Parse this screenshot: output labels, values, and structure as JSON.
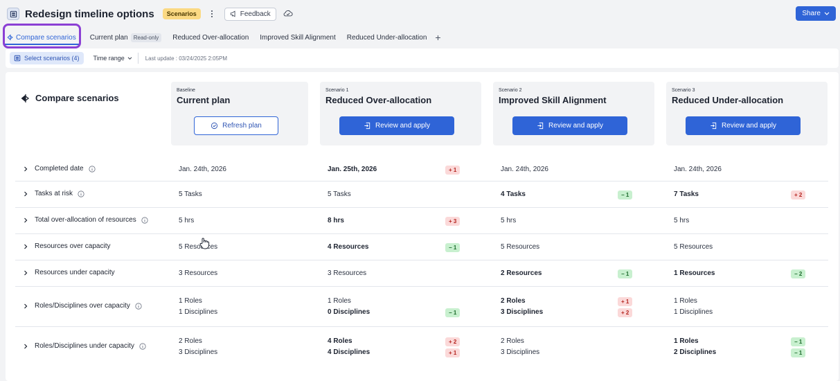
{
  "header": {
    "title": "Redesign timeline options",
    "badge": "Scenarios",
    "feedback_label": "Feedback",
    "share_label": "Share"
  },
  "tabs": [
    {
      "label": "Compare scenarios",
      "active": true
    },
    {
      "label": "Current plan",
      "tag": "Read-only"
    },
    {
      "label": "Reduced Over-allocation"
    },
    {
      "label": "Improved Skill Alignment"
    },
    {
      "label": "Reduced Under-allocation"
    }
  ],
  "toolbar": {
    "select_label": "Select scenarios (4)",
    "time_range_label": "Time range",
    "last_update": "Last update : 03/24/2025 2:05PM"
  },
  "compare": {
    "heading": "Compare scenarios",
    "columns": [
      {
        "kicker": "Baseline",
        "name": "Current plan",
        "action": "Refresh plan"
      },
      {
        "kicker": "Scenario 1",
        "name": "Reduced Over-allocation",
        "action": "Review and apply"
      },
      {
        "kicker": "Scenario 2",
        "name": "Improved Skill Alignment",
        "action": "Review and apply"
      },
      {
        "kicker": "Scenario 3",
        "name": "Reduced Under-allocation",
        "action": "Review and apply"
      }
    ]
  },
  "rows": [
    {
      "label": "Completed date",
      "info": true,
      "cells": [
        {
          "lines": [
            "Jan. 24th, 2026"
          ]
        },
        {
          "lines": [
            "Jan. 25th, 2026"
          ],
          "bold": true,
          "deltas": [
            {
              "text": "+ 1",
              "dir": "up"
            }
          ]
        },
        {
          "lines": [
            "Jan. 24th, 2026"
          ]
        },
        {
          "lines": [
            "Jan. 24th, 2026"
          ]
        }
      ]
    },
    {
      "label": "Tasks at risk",
      "info": true,
      "cells": [
        {
          "lines": [
            "5 Tasks"
          ]
        },
        {
          "lines": [
            "5 Tasks"
          ]
        },
        {
          "lines": [
            "4 Tasks"
          ],
          "bold": true,
          "deltas": [
            {
              "text": "− 1",
              "dir": "down"
            }
          ]
        },
        {
          "lines": [
            "7 Tasks"
          ],
          "bold": true,
          "deltas": [
            {
              "text": "+ 2",
              "dir": "up"
            }
          ]
        }
      ]
    },
    {
      "label": "Total over-allocation of resources",
      "info": true,
      "cells": [
        {
          "lines": [
            "5 hrs"
          ]
        },
        {
          "lines": [
            "8 hrs"
          ],
          "bold": true,
          "deltas": [
            {
              "text": "+ 3",
              "dir": "up"
            }
          ]
        },
        {
          "lines": [
            "5 hrs"
          ]
        },
        {
          "lines": [
            "5 hrs"
          ]
        }
      ]
    },
    {
      "label": "Resources over capacity",
      "info": false,
      "cells": [
        {
          "lines": [
            "5 Resources"
          ]
        },
        {
          "lines": [
            "4 Resources"
          ],
          "bold": true,
          "deltas": [
            {
              "text": "− 1",
              "dir": "down"
            }
          ]
        },
        {
          "lines": [
            "5 Resources"
          ]
        },
        {
          "lines": [
            "5 Resources"
          ]
        }
      ]
    },
    {
      "label": "Resources under capacity",
      "info": false,
      "cells": [
        {
          "lines": [
            "3 Resources"
          ]
        },
        {
          "lines": [
            "3 Resources"
          ]
        },
        {
          "lines": [
            "2 Resources"
          ],
          "bold": true,
          "deltas": [
            {
              "text": "− 1",
              "dir": "down"
            }
          ]
        },
        {
          "lines": [
            "1 Resources"
          ],
          "bold": true,
          "deltas": [
            {
              "text": "− 2",
              "dir": "down"
            }
          ]
        }
      ]
    },
    {
      "label": "Roles/Disciplines over capacity",
      "info": true,
      "cells": [
        {
          "lines": [
            "1 Roles",
            "1 Disciplines"
          ]
        },
        {
          "lines": [
            "1 Roles",
            "0 Disciplines"
          ],
          "boldLines": [
            false,
            true
          ],
          "deltas": [
            null,
            {
              "text": "− 1",
              "dir": "down"
            }
          ]
        },
        {
          "lines": [
            "2 Roles",
            "3 Disciplines"
          ],
          "bold": true,
          "deltas": [
            {
              "text": "+ 1",
              "dir": "up"
            },
            {
              "text": "+ 2",
              "dir": "up"
            }
          ]
        },
        {
          "lines": [
            "1 Roles",
            "1 Disciplines"
          ]
        }
      ]
    },
    {
      "label": "Roles/Disciplines under capacity",
      "info": true,
      "cells": [
        {
          "lines": [
            "2 Roles",
            "3 Disciplines"
          ]
        },
        {
          "lines": [
            "4 Roles",
            "4 Disciplines"
          ],
          "bold": true,
          "deltas": [
            {
              "text": "+ 2",
              "dir": "up"
            },
            {
              "text": "+ 1",
              "dir": "up"
            }
          ]
        },
        {
          "lines": [
            "2 Roles",
            "3 Disciplines"
          ]
        },
        {
          "lines": [
            "1 Roles",
            "2 Disciplines"
          ],
          "bold": true,
          "deltas": [
            {
              "text": "− 1",
              "dir": "down"
            },
            {
              "text": "− 1",
              "dir": "down"
            }
          ]
        }
      ]
    }
  ],
  "icons": {
    "app": "grid-icon",
    "kebab": "kebab-icon",
    "feedback": "megaphone-icon",
    "cloud": "cloud-icon",
    "share_caret": "chevron-down-icon",
    "compare": "compare-icon",
    "refresh": "refresh-icon",
    "apply": "apply-icon",
    "info": "info-icon",
    "cursor": "hand-pointer-icon"
  },
  "colors": {
    "accent": "#2f64d7",
    "badge": "#fbd983",
    "focus_ring": "#8b3fd4",
    "delta_up": "#fbd9d9",
    "delta_down": "#c8f0cf"
  }
}
